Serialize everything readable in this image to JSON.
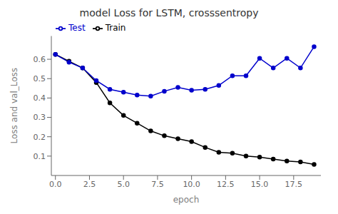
{
  "chart_data": {
    "type": "line",
    "title": "model Loss for LSTM, crosssentropy",
    "x_label": "epoch",
    "y_label": "Loss and val_Loss",
    "x": [
      0,
      1,
      2,
      3,
      4,
      5,
      6,
      7,
      8,
      9,
      10,
      11,
      12,
      13,
      14,
      15,
      16,
      17,
      18,
      19
    ],
    "series": [
      {
        "name": "Train",
        "color": "#000000",
        "marker": "circle",
        "values": [
          0.625,
          0.59,
          0.555,
          0.48,
          0.375,
          0.31,
          0.27,
          0.23,
          0.205,
          0.19,
          0.175,
          0.145,
          0.12,
          0.115,
          0.1,
          0.095,
          0.085,
          0.075,
          0.07,
          0.057
        ]
      },
      {
        "name": "Test",
        "color": "#0000cc",
        "marker": "circle",
        "values": [
          0.625,
          0.585,
          0.555,
          0.49,
          0.445,
          0.43,
          0.415,
          0.41,
          0.435,
          0.455,
          0.44,
          0.445,
          0.465,
          0.515,
          0.515,
          0.605,
          0.555,
          0.605,
          0.555,
          0.665
        ]
      }
    ],
    "xlim": [
      -0.3,
      19.5
    ],
    "ylim": [
      0.0,
      0.72
    ],
    "xticks": [
      {
        "value": 0.0,
        "label": "0.0"
      },
      2.5,
      {
        "value": 5.0,
        "label": "5.0"
      },
      7.5,
      {
        "value": 10.0,
        "label": "10.0"
      },
      12.5,
      {
        "value": 15.0,
        "label": "15.0"
      },
      17.5
    ],
    "yticks": [
      0.1,
      0.2,
      0.3,
      0.4,
      0.5,
      0.6
    ],
    "grid": false,
    "legend": "upper left"
  }
}
